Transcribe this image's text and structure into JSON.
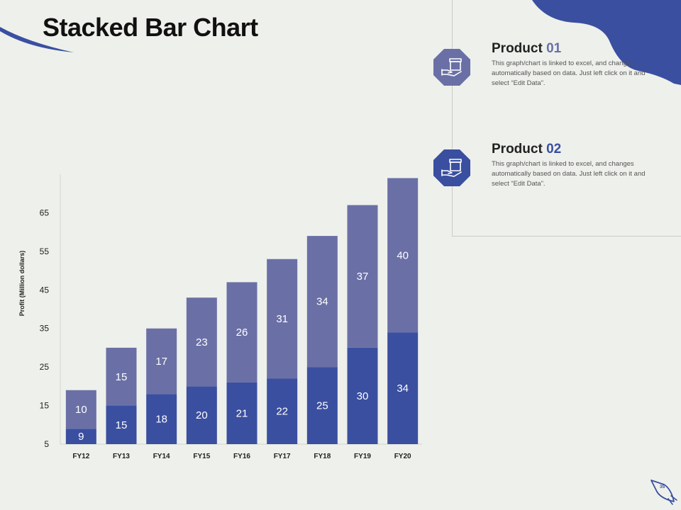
{
  "slide": {
    "title": "Stacked Bar Chart",
    "page_number": "35"
  },
  "legend": [
    {
      "name": "Product ",
      "num": "01",
      "description": "This graph/chart is linked to excel, and changes automatically based on data. Just left click on it and select “Edit Data”.",
      "color": "#6a70a6",
      "icon": "hand-box-icon"
    },
    {
      "name": "Product ",
      "num": "02",
      "description": "This graph/chart is linked to excel, and changes automatically based on data. Just left click on it and select “Edit Data”.",
      "color": "#3a4fa0",
      "icon": "hand-box-icon"
    }
  ],
  "chart_data": {
    "type": "bar",
    "stacked": true,
    "categories": [
      "FY12",
      "FY13",
      "FY14",
      "FY15",
      "FY16",
      "FY17",
      "FY18",
      "FY19",
      "FY20"
    ],
    "series": [
      {
        "name": "Product 02",
        "values": [
          9,
          15,
          18,
          20,
          21,
          22,
          25,
          30,
          34
        ],
        "color": "#3a4fa0"
      },
      {
        "name": "Product 01",
        "values": [
          10,
          15,
          17,
          23,
          26,
          31,
          34,
          37,
          40
        ],
        "color": "#6a70a6"
      }
    ],
    "ylabel": "Profit  (Million dollars)",
    "xlabel": "",
    "yticks": [
      5,
      15,
      25,
      35,
      45,
      55,
      65
    ],
    "ylim": [
      5,
      75
    ],
    "grid": false,
    "legend_placement": "top-right"
  }
}
